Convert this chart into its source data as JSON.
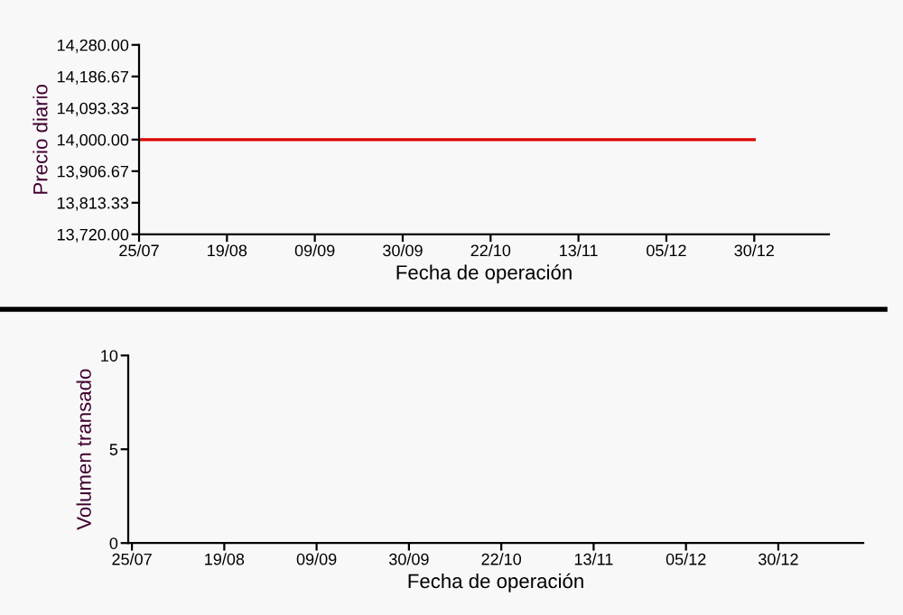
{
  "chart_data": [
    {
      "type": "line",
      "xlabel": "Fecha de operación",
      "ylabel": "Precio diario",
      "categories": [
        "25/07",
        "19/08",
        "09/09",
        "30/09",
        "22/10",
        "13/11",
        "05/12",
        "30/12"
      ],
      "series": [
        {
          "color": "#dd0000",
          "values": [
            14000,
            14000,
            14000,
            14000,
            14000,
            14000,
            14000,
            14000
          ]
        }
      ],
      "ylim": [
        13720,
        14280
      ],
      "yticks": [
        {
          "value": 13720,
          "label": "13,720.00"
        },
        {
          "value": 13813.33,
          "label": "13,813.33"
        },
        {
          "value": 13906.67,
          "label": "13,906.67"
        },
        {
          "value": 14000,
          "label": "14,000.00"
        },
        {
          "value": 14093.33,
          "label": "14,093.33"
        },
        {
          "value": 14186.67,
          "label": "14,186.67"
        },
        {
          "value": 14280,
          "label": "14,280.00"
        }
      ]
    },
    {
      "type": "bar",
      "xlabel": "Fecha de operación",
      "ylabel": "Volumen transado",
      "categories": [
        "25/07",
        "19/08",
        "09/09",
        "30/09",
        "22/10",
        "13/11",
        "05/12",
        "30/12"
      ],
      "ylim": [
        0,
        10
      ],
      "yticks": [
        0,
        5,
        10
      ]
    }
  ]
}
